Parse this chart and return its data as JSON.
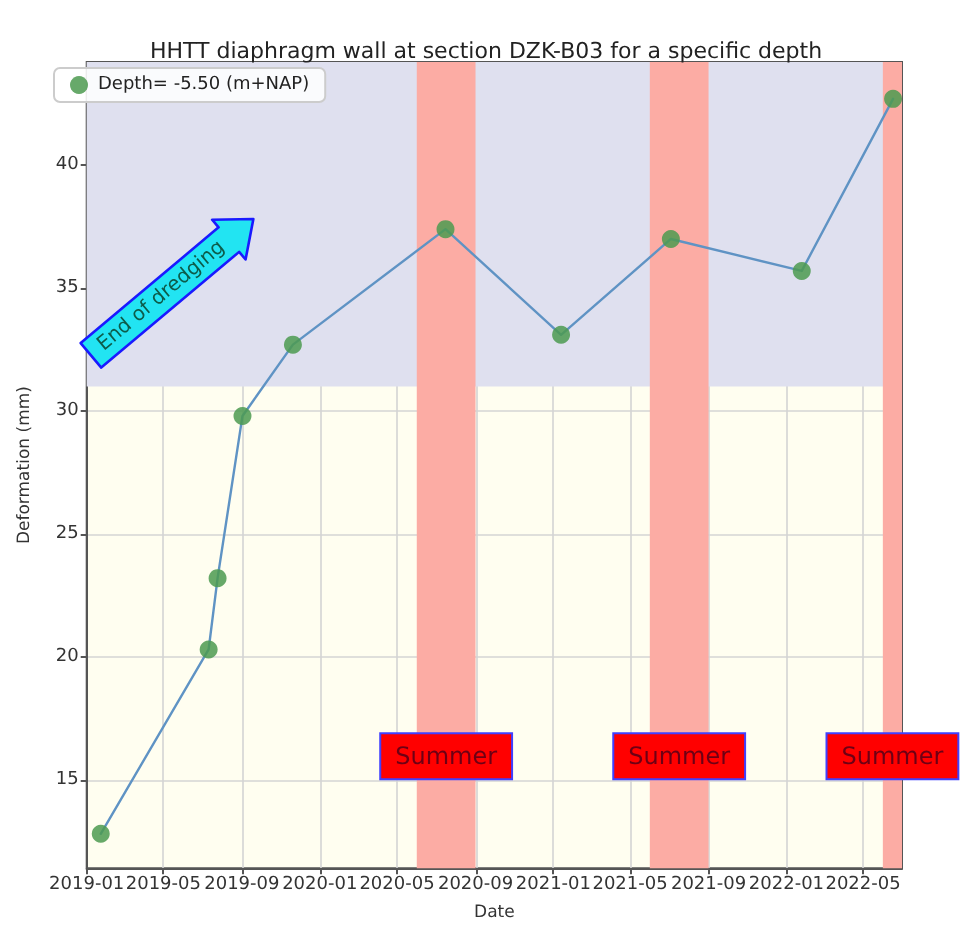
{
  "chart_data": {
    "type": "line",
    "title": "HHTT diaphragm wall at section DZK-B03 for a specific depth",
    "xlabel": "Date",
    "ylabel": "Deformation (mm)",
    "x": [
      "2019-01-23",
      "2019-07-11",
      "2019-07-25",
      "2019-09-02",
      "2019-11-20",
      "2020-07-16",
      "2021-01-13",
      "2021-07-04",
      "2022-01-25",
      "2022-06-17"
    ],
    "series": [
      {
        "color": "#5f93c4",
        "marker": "none",
        "values": [
          12.8,
          20.3,
          23.2,
          29.8,
          32.7,
          37.4,
          33.1,
          37.0,
          35.7,
          42.7
        ]
      },
      {
        "type": "scatter",
        "name": "Depth= -5.50 (m+NAP)",
        "color": "#4c9a50",
        "marker": "circle",
        "values": [
          12.8,
          20.3,
          23.2,
          29.8,
          32.7,
          37.4,
          33.1,
          37.0,
          35.7,
          42.7
        ]
      }
    ],
    "xlim": [
      "2019-01",
      "2022-07"
    ],
    "xticks": [
      "2019-01",
      "2019-05",
      "2019-09",
      "2020-01",
      "2020-05",
      "2020-09",
      "2021-01",
      "2021-05",
      "2021-09",
      "2022-01",
      "2022-05"
    ],
    "ylim": [
      11.4,
      44.2
    ],
    "yticks": [
      15,
      20,
      25,
      30,
      35,
      40
    ],
    "bands": [
      {
        "axis": "y",
        "from": 31,
        "to": 44.2,
        "color": "#dfe0ef"
      },
      {
        "axis": "x",
        "from": "2020-06",
        "to": "2020-09",
        "color": "#fcaca4",
        "label": "Summer"
      },
      {
        "axis": "x",
        "from": "2021-06",
        "to": "2021-09",
        "color": "#fcaca4",
        "label": "Summer"
      },
      {
        "axis": "x",
        "from": "2022-06",
        "to": "2022-07",
        "color": "#fcaca4",
        "label": "Summer"
      }
    ],
    "annotations": [
      "End of dredging"
    ],
    "grid": true,
    "legend": "top left"
  }
}
